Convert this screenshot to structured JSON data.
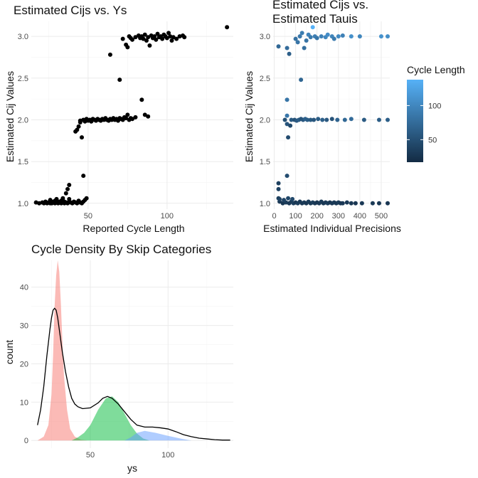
{
  "chart_data": [
    {
      "type": "scatter",
      "title": "Estimated Cijs vs. Ys",
      "xlabel": "Reported Cycle Length",
      "ylabel": "Estimated Cij Values",
      "xlim": [
        14,
        142
      ],
      "ylim": [
        0.93,
        3.18
      ],
      "xticks": [
        50,
        100
      ],
      "yticks": [
        1.0,
        1.5,
        2.0,
        2.5,
        3.0
      ],
      "ytick_labels": [
        "1.0",
        "1.5",
        "2.0",
        "2.5",
        "3.0"
      ],
      "grid": true,
      "color": "#000000",
      "points": [
        [
          17,
          1.01
        ],
        [
          19,
          1.0
        ],
        [
          21,
          1.01
        ],
        [
          22,
          1.0
        ],
        [
          23,
          1.02
        ],
        [
          24,
          1.0
        ],
        [
          25,
          1.01
        ],
        [
          26,
          1.0
        ],
        [
          27,
          1.02
        ],
        [
          27,
          1.0
        ],
        [
          28,
          1.01
        ],
        [
          29,
          1.0
        ],
        [
          29,
          1.03
        ],
        [
          30,
          1.01
        ],
        [
          31,
          1.0
        ],
        [
          31,
          1.02
        ],
        [
          32,
          1.01
        ],
        [
          33,
          1.0
        ],
        [
          33,
          1.03
        ],
        [
          34,
          1.01
        ],
        [
          35,
          1.0
        ],
        [
          35,
          1.02
        ],
        [
          36,
          1.01
        ],
        [
          37,
          1.0
        ],
        [
          38,
          1.02
        ],
        [
          39,
          1.01
        ],
        [
          40,
          1.0
        ],
        [
          41,
          1.02
        ],
        [
          42,
          1.01
        ],
        [
          43,
          1.0
        ],
        [
          44,
          1.03
        ],
        [
          45,
          1.01
        ],
        [
          46,
          1.0
        ],
        [
          47,
          1.02
        ],
        [
          48,
          1.04
        ],
        [
          49,
          1.06
        ],
        [
          26,
          1.04
        ],
        [
          30,
          1.05
        ],
        [
          34,
          1.06
        ],
        [
          38,
          1.05
        ],
        [
          36,
          1.12
        ],
        [
          37,
          1.17
        ],
        [
          38,
          1.22
        ],
        [
          47,
          1.33
        ],
        [
          42,
          1.86
        ],
        [
          43,
          1.88
        ],
        [
          44,
          1.92
        ],
        [
          45,
          1.97
        ],
        [
          46,
          1.79
        ],
        [
          45,
          1.99
        ],
        [
          47,
          2.0
        ],
        [
          48,
          1.98
        ],
        [
          49,
          2.01
        ],
        [
          50,
          1.99
        ],
        [
          51,
          2.0
        ],
        [
          52,
          1.98
        ],
        [
          53,
          2.01
        ],
        [
          54,
          2.0
        ],
        [
          55,
          1.99
        ],
        [
          56,
          2.01
        ],
        [
          57,
          2.0
        ],
        [
          58,
          1.99
        ],
        [
          59,
          2.01
        ],
        [
          60,
          2.0
        ],
        [
          61,
          2.02
        ],
        [
          62,
          2.0
        ],
        [
          63,
          1.99
        ],
        [
          64,
          2.01
        ],
        [
          65,
          2.0
        ],
        [
          66,
          2.02
        ],
        [
          67,
          2.0
        ],
        [
          68,
          2.01
        ],
        [
          69,
          1.99
        ],
        [
          70,
          2.02
        ],
        [
          71,
          2.01
        ],
        [
          72,
          2.0
        ],
        [
          73,
          2.03
        ],
        [
          74,
          2.02
        ],
        [
          75,
          2.06
        ],
        [
          76,
          2.0
        ],
        [
          77,
          2.02
        ],
        [
          78,
          2.01
        ],
        [
          80,
          2.03
        ],
        [
          86,
          2.06
        ],
        [
          88,
          2.04
        ],
        [
          84,
          2.24
        ],
        [
          70,
          2.48
        ],
        [
          64,
          2.78
        ],
        [
          72,
          2.97
        ],
        [
          74,
          2.9
        ],
        [
          75,
          2.87
        ],
        [
          76,
          3.0
        ],
        [
          77,
          2.98
        ],
        [
          78,
          2.96
        ],
        [
          80,
          2.99
        ],
        [
          82,
          3.01
        ],
        [
          83,
          2.98
        ],
        [
          84,
          3.0
        ],
        [
          85,
          2.97
        ],
        [
          86,
          3.02
        ],
        [
          87,
          2.95
        ],
        [
          88,
          2.99
        ],
        [
          89,
          2.89
        ],
        [
          90,
          3.01
        ],
        [
          91,
          2.98
        ],
        [
          92,
          3.0
        ],
        [
          93,
          2.96
        ],
        [
          94,
          3.03
        ],
        [
          95,
          2.99
        ],
        [
          96,
          3.0
        ],
        [
          97,
          2.97
        ],
        [
          98,
          3.02
        ],
        [
          99,
          3.0
        ],
        [
          100,
          2.98
        ],
        [
          101,
          3.04
        ],
        [
          102,
          3.0
        ],
        [
          103,
          2.95
        ],
        [
          104,
          2.99
        ],
        [
          106,
          2.97
        ],
        [
          108,
          3.0
        ],
        [
          110,
          3.01
        ],
        [
          111,
          2.99
        ],
        [
          138,
          3.11
        ]
      ]
    },
    {
      "type": "scatter",
      "title": "Estimated Cijs vs.\nEstimated Tauis",
      "xlabel": "Estimated Individual Precisions",
      "ylabel": "Estimated Cij Values",
      "xlim": [
        -5,
        540
      ],
      "ylim": [
        0.93,
        3.18
      ],
      "xticks": [
        0,
        100,
        200,
        300,
        400,
        500
      ],
      "yticks": [
        1.0,
        1.5,
        2.0,
        2.5,
        3.0
      ],
      "ytick_labels": [
        "1.0",
        "1.5",
        "2.0",
        "2.5",
        "3.0"
      ],
      "grid": true,
      "color_scale": {
        "low": "#132B43",
        "high": "#56B1F7",
        "min": 17,
        "max": 138
      },
      "legend": {
        "title": "Cycle Length",
        "position": "right",
        "ticks": [
          50,
          100
        ]
      },
      "points": [
        [
          20,
          2.88,
          72
        ],
        [
          60,
          2.86,
          76
        ],
        [
          70,
          2.79,
          64
        ],
        [
          100,
          2.97,
          80
        ],
        [
          110,
          2.93,
          84
        ],
        [
          120,
          3.0,
          86
        ],
        [
          130,
          3.04,
          90
        ],
        [
          140,
          2.86,
          78
        ],
        [
          150,
          2.95,
          82
        ],
        [
          160,
          3.02,
          96
        ],
        [
          170,
          2.99,
          88
        ],
        [
          180,
          3.11,
          138
        ],
        [
          190,
          3.0,
          92
        ],
        [
          200,
          2.98,
          85
        ],
        [
          220,
          3.0,
          95
        ],
        [
          240,
          2.99,
          100
        ],
        [
          250,
          3.02,
          105
        ],
        [
          270,
          3.0,
          98
        ],
        [
          280,
          2.97,
          89
        ],
        [
          300,
          3.0,
          102
        ],
        [
          320,
          3.01,
          94
        ],
        [
          360,
          3.0,
          108
        ],
        [
          400,
          3.0,
          99
        ],
        [
          500,
          3.0,
          110
        ],
        [
          530,
          3.0,
          106
        ],
        [
          125,
          2.48,
          70
        ],
        [
          60,
          2.24,
          84
        ],
        [
          60,
          2.05,
          86
        ],
        [
          60,
          1.95,
          55
        ],
        [
          65,
          1.79,
          46
        ],
        [
          75,
          1.93,
          44
        ],
        [
          50,
          2.0,
          50
        ],
        [
          80,
          2.0,
          60
        ],
        [
          95,
          2.0,
          52
        ],
        [
          105,
          1.99,
          58
        ],
        [
          115,
          2.0,
          62
        ],
        [
          125,
          2.01,
          54
        ],
        [
          135,
          2.0,
          57
        ],
        [
          145,
          2.01,
          66
        ],
        [
          155,
          2.0,
          63
        ],
        [
          170,
          2.0,
          59
        ],
        [
          185,
          2.0,
          56
        ],
        [
          205,
          2.01,
          61
        ],
        [
          225,
          2.0,
          65
        ],
        [
          245,
          2.0,
          58
        ],
        [
          270,
          2.01,
          53
        ],
        [
          295,
          2.0,
          68
        ],
        [
          330,
          2.0,
          72
        ],
        [
          360,
          2.01,
          75
        ],
        [
          420,
          2.0,
          60
        ],
        [
          490,
          2.0,
          62
        ],
        [
          530,
          2.0,
          64
        ],
        [
          20,
          1.24,
          36
        ],
        [
          20,
          1.17,
          37
        ],
        [
          60,
          1.33,
          47
        ],
        [
          20,
          1.06,
          34
        ],
        [
          25,
          1.02,
          30
        ],
        [
          40,
          1.0,
          28
        ],
        [
          55,
          1.01,
          32
        ],
        [
          70,
          1.0,
          29
        ],
        [
          80,
          1.02,
          31
        ],
        [
          90,
          1.0,
          35
        ],
        [
          100,
          1.01,
          28
        ],
        [
          110,
          1.0,
          33
        ],
        [
          120,
          1.02,
          30
        ],
        [
          130,
          1.0,
          29
        ],
        [
          140,
          1.01,
          31
        ],
        [
          150,
          1.0,
          27
        ],
        [
          160,
          1.02,
          32
        ],
        [
          170,
          1.0,
          28
        ],
        [
          180,
          1.01,
          34
        ],
        [
          190,
          1.0,
          30
        ],
        [
          200,
          1.01,
          27
        ],
        [
          210,
          1.0,
          29
        ],
        [
          220,
          1.02,
          31
        ],
        [
          230,
          1.0,
          28
        ],
        [
          240,
          1.01,
          30
        ],
        [
          250,
          1.0,
          32
        ],
        [
          260,
          1.01,
          27
        ],
        [
          270,
          1.0,
          29
        ],
        [
          280,
          1.01,
          30
        ],
        [
          290,
          1.0,
          28
        ],
        [
          300,
          1.01,
          31
        ],
        [
          310,
          1.0,
          27
        ],
        [
          320,
          1.0,
          29
        ],
        [
          340,
          1.01,
          30
        ],
        [
          360,
          1.0,
          28
        ],
        [
          380,
          1.0,
          27
        ],
        [
          410,
          1.0,
          29
        ],
        [
          460,
          1.0,
          30
        ],
        [
          490,
          1.0,
          28
        ],
        [
          530,
          1.0,
          27
        ],
        [
          25,
          1.05,
          38
        ],
        [
          45,
          1.04,
          40
        ],
        [
          65,
          1.06,
          42
        ],
        [
          85,
          1.05,
          44
        ]
      ]
    },
    {
      "type": "area",
      "title": "Cycle Density By Skip Categories",
      "xlabel": "ys",
      "ylabel": "count",
      "xlim": [
        12,
        142
      ],
      "ylim": [
        -2,
        47
      ],
      "xticks": [
        50,
        100
      ],
      "yticks": [
        0,
        10,
        20,
        30,
        40
      ],
      "grid": true,
      "series": [
        {
          "color": "#F8766D",
          "points": [
            [
              16,
              0
            ],
            [
              20,
              1
            ],
            [
              23,
              4
            ],
            [
              25,
              12
            ],
            [
              26,
              22
            ],
            [
              27,
              35
            ],
            [
              28,
              43
            ],
            [
              29,
              47
            ],
            [
              30,
              44
            ],
            [
              31,
              36
            ],
            [
              32,
              26
            ],
            [
              33,
              17
            ],
            [
              35,
              8
            ],
            [
              37,
              3
            ],
            [
              40,
              1
            ],
            [
              44,
              0.2
            ],
            [
              48,
              0
            ]
          ]
        },
        {
          "color": "#00BA38",
          "points": [
            [
              38,
              0
            ],
            [
              42,
              0.8
            ],
            [
              46,
              2
            ],
            [
              50,
              4
            ],
            [
              55,
              8
            ],
            [
              60,
              11
            ],
            [
              64,
              11.5
            ],
            [
              68,
              10
            ],
            [
              72,
              7
            ],
            [
              76,
              4
            ],
            [
              80,
              1.8
            ],
            [
              84,
              0.5
            ],
            [
              88,
              0
            ]
          ]
        },
        {
          "color": "#619CFF",
          "points": [
            [
              72,
              0
            ],
            [
              76,
              0.8
            ],
            [
              80,
              2
            ],
            [
              85,
              2.5
            ],
            [
              92,
              2
            ],
            [
              100,
              1.2
            ],
            [
              108,
              0.5
            ],
            [
              115,
              0
            ]
          ]
        }
      ],
      "overall_line": {
        "color": "#000000",
        "points": [
          [
            16,
            4
          ],
          [
            18,
            8
          ],
          [
            20,
            14
          ],
          [
            22,
            22
          ],
          [
            24,
            29
          ],
          [
            25,
            32
          ],
          [
            26,
            34
          ],
          [
            27,
            34.5
          ],
          [
            28,
            34
          ],
          [
            29,
            32
          ],
          [
            30,
            29
          ],
          [
            32,
            23
          ],
          [
            34,
            18
          ],
          [
            36,
            14
          ],
          [
            38,
            11
          ],
          [
            40,
            9.5
          ],
          [
            42,
            8.8
          ],
          [
            45,
            8.3
          ],
          [
            50,
            8.5
          ],
          [
            55,
            9.8
          ],
          [
            58,
            11
          ],
          [
            61,
            11.5
          ],
          [
            64,
            11
          ],
          [
            68,
            9.5
          ],
          [
            72,
            7.5
          ],
          [
            76,
            5.5
          ],
          [
            80,
            4
          ],
          [
            85,
            3.5
          ],
          [
            90,
            3.5
          ],
          [
            95,
            3.3
          ],
          [
            100,
            3
          ],
          [
            105,
            2.3
          ],
          [
            110,
            1.5
          ],
          [
            115,
            1
          ],
          [
            120,
            0.6
          ],
          [
            125,
            0.4
          ],
          [
            130,
            0.2
          ],
          [
            135,
            0.1
          ],
          [
            140,
            0.1
          ]
        ]
      }
    }
  ]
}
